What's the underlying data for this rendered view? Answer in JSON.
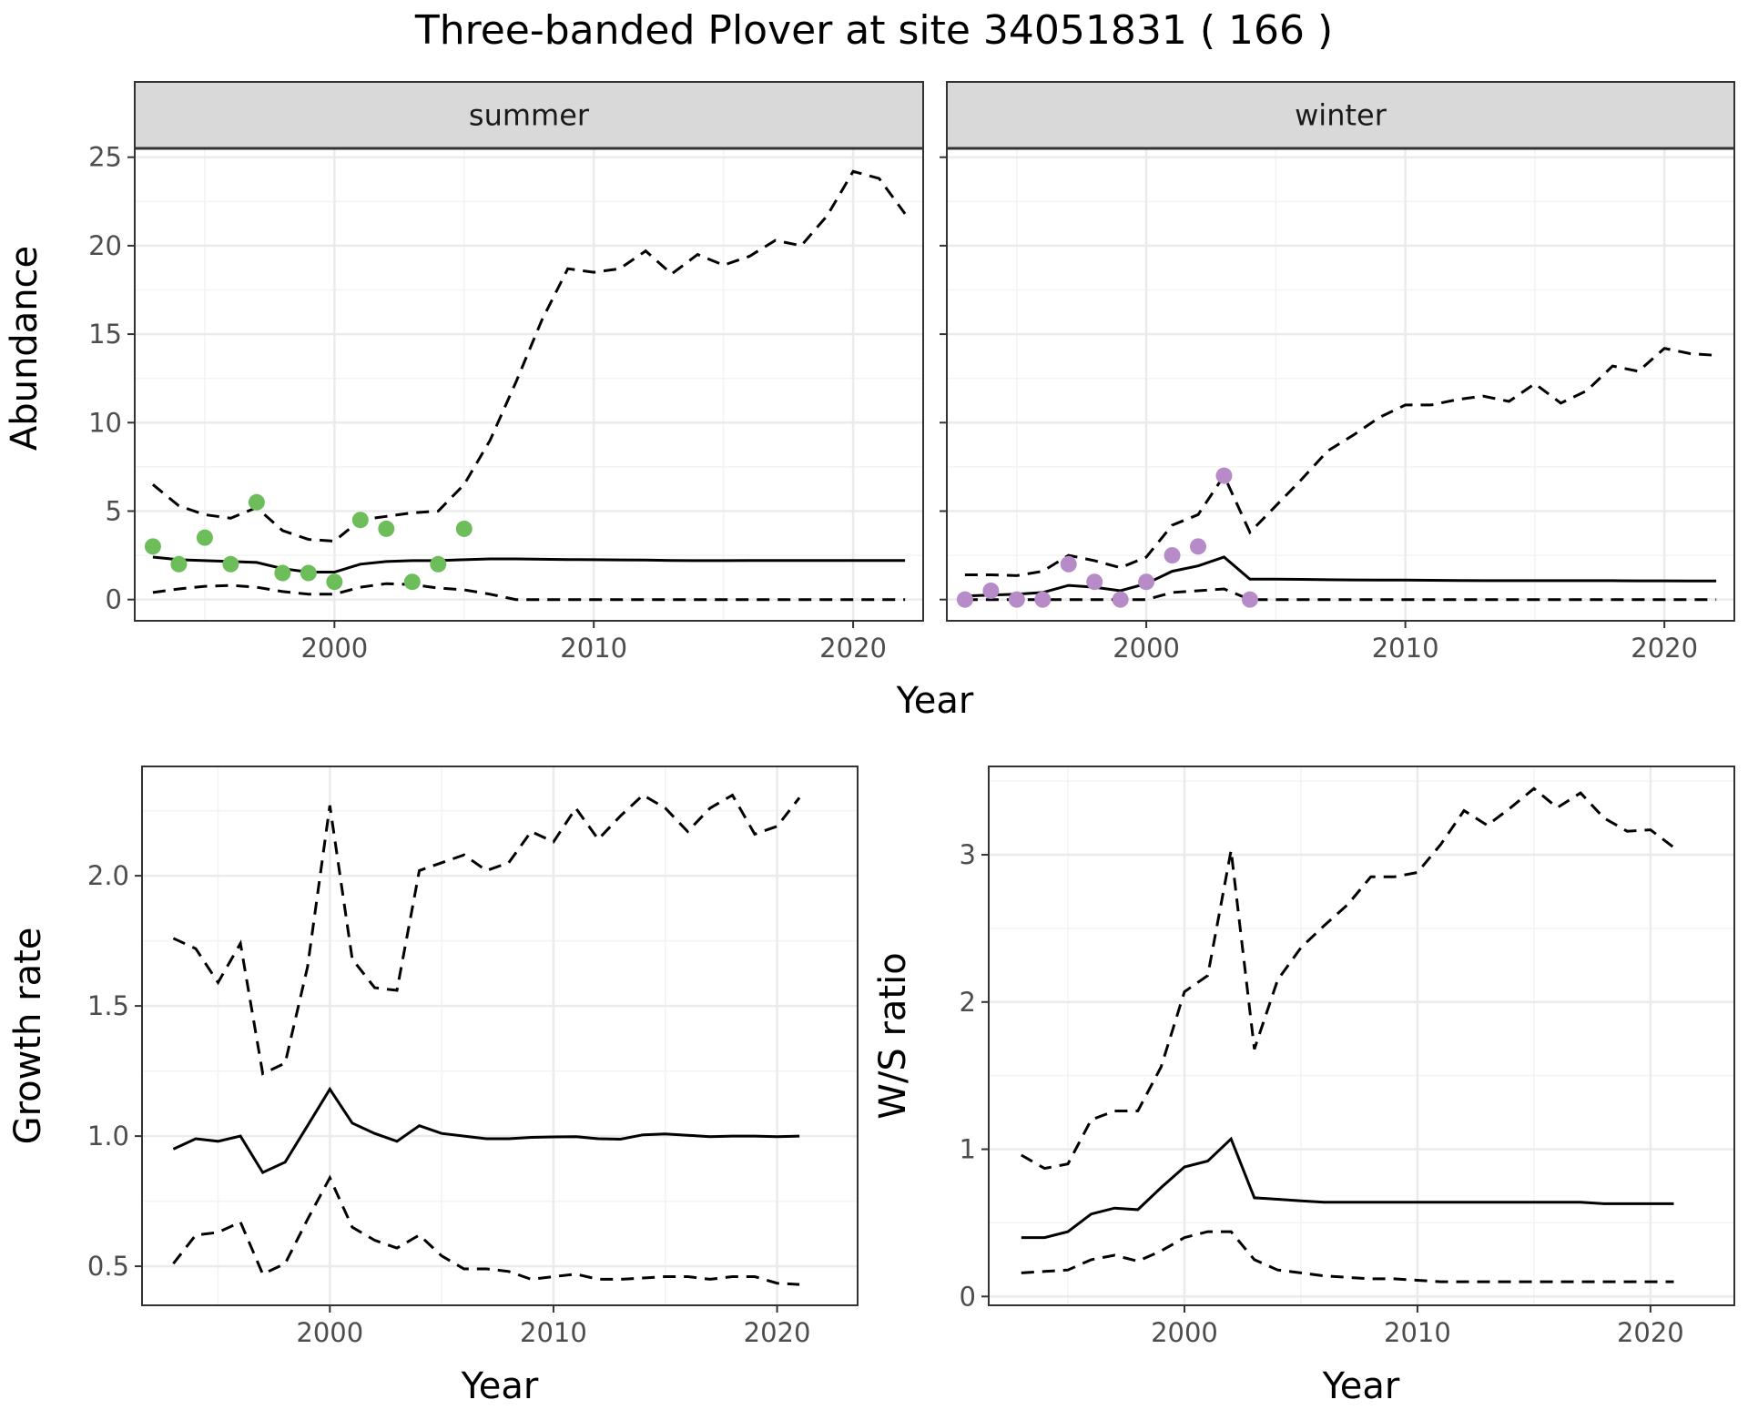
{
  "title": "Three-banded Plover at site 34051831 ( 166 )",
  "colors": {
    "summer_points": "#6dbe5a",
    "winter_points": "#b78bc8",
    "line": "#000000",
    "strip_fill": "#d9d9d9",
    "grid_major": "#ebebeb",
    "grid_minor": "#f3f3f3"
  },
  "chart_data": [
    {
      "type": "line",
      "panel": "summer",
      "strip_label": "summer",
      "ylabel": "Abundance",
      "xlabel": "Year",
      "xlim": [
        1992.3,
        2022.7
      ],
      "ylim": [
        -1.2,
        25.5
      ],
      "x_ticks": [
        2000,
        2010,
        2020
      ],
      "y_ticks": [
        0,
        5,
        10,
        15,
        20,
        25
      ],
      "grid": true,
      "mean": {
        "x": [
          1993,
          1994,
          1995,
          1996,
          1997,
          1998,
          1999,
          2000,
          2001,
          2002,
          2003,
          2004,
          2005,
          2006,
          2007,
          2008,
          2009,
          2010,
          2011,
          2012,
          2013,
          2014,
          2015,
          2016,
          2017,
          2018,
          2019,
          2020,
          2021,
          2022
        ],
        "y": [
          2.4,
          2.25,
          2.2,
          2.15,
          2.1,
          1.75,
          1.55,
          1.55,
          2.0,
          2.15,
          2.2,
          2.2,
          2.25,
          2.3,
          2.3,
          2.28,
          2.26,
          2.25,
          2.24,
          2.23,
          2.21,
          2.2,
          2.2,
          2.21,
          2.21,
          2.21,
          2.21,
          2.21,
          2.21,
          2.21
        ]
      },
      "upper": {
        "x": [
          1993,
          1994,
          1995,
          1996,
          1997,
          1998,
          1999,
          2000,
          2001,
          2002,
          2003,
          2004,
          2005,
          2006,
          2007,
          2008,
          2009,
          2010,
          2011,
          2012,
          2013,
          2014,
          2015,
          2016,
          2017,
          2018,
          2019,
          2020,
          2021,
          2022
        ],
        "y": [
          6.5,
          5.3,
          4.8,
          4.6,
          5.2,
          3.9,
          3.4,
          3.3,
          4.5,
          4.7,
          4.9,
          5.0,
          6.5,
          9.0,
          12.3,
          15.8,
          18.7,
          18.5,
          18.7,
          19.7,
          18.4,
          19.5,
          18.9,
          19.4,
          20.3,
          20.0,
          21.7,
          24.2,
          23.8,
          21.8
        ]
      },
      "lower": {
        "x": [
          1993,
          1994,
          1995,
          1996,
          1997,
          1998,
          1999,
          2000,
          2001,
          2002,
          2003,
          2004,
          2005,
          2006,
          2007,
          2008,
          2009,
          2010,
          2011,
          2012,
          2013,
          2014,
          2015,
          2016,
          2017,
          2018,
          2019,
          2020,
          2021,
          2022
        ],
        "y": [
          0.4,
          0.6,
          0.75,
          0.8,
          0.7,
          0.45,
          0.3,
          0.3,
          0.7,
          0.9,
          0.85,
          0.65,
          0.55,
          0.3,
          0,
          0,
          0,
          0,
          0,
          0,
          0,
          0,
          0,
          0,
          0,
          0,
          0,
          0,
          0,
          0
        ]
      },
      "points": {
        "x": [
          1993,
          1994,
          1995,
          1996,
          1997,
          1998,
          1999,
          2000,
          2001,
          2002,
          2003,
          2004,
          2005
        ],
        "y": [
          3,
          2,
          3.5,
          2,
          5.5,
          1.5,
          1.5,
          1,
          4.5,
          4,
          1,
          2,
          4
        ]
      }
    },
    {
      "type": "line",
      "panel": "winter",
      "strip_label": "winter",
      "xlabel": "Year",
      "xlim": [
        1992.3,
        2022.7
      ],
      "ylim": [
        -1.2,
        25.5
      ],
      "x_ticks": [
        2000,
        2010,
        2020
      ],
      "y_ticks": [
        0,
        5,
        10,
        15,
        20,
        25
      ],
      "grid": true,
      "mean": {
        "x": [
          1993,
          1994,
          1995,
          1996,
          1997,
          1998,
          1999,
          2000,
          2001,
          2002,
          2003,
          2004,
          2005,
          2006,
          2007,
          2008,
          2009,
          2010,
          2011,
          2012,
          2013,
          2014,
          2015,
          2016,
          2017,
          2018,
          2019,
          2020,
          2021,
          2022
        ],
        "y": [
          0.2,
          0.25,
          0.3,
          0.4,
          0.8,
          0.7,
          0.5,
          0.9,
          1.6,
          1.9,
          2.4,
          1.15,
          1.15,
          1.14,
          1.12,
          1.11,
          1.1,
          1.1,
          1.09,
          1.08,
          1.07,
          1.07,
          1.07,
          1.07,
          1.07,
          1.07,
          1.06,
          1.06,
          1.05,
          1.05
        ]
      },
      "upper": {
        "x": [
          1993,
          1994,
          1995,
          1996,
          1997,
          1998,
          1999,
          2000,
          2001,
          2002,
          2003,
          2004,
          2005,
          2006,
          2007,
          2008,
          2009,
          2010,
          2011,
          2012,
          2013,
          2014,
          2015,
          2016,
          2017,
          2018,
          2019,
          2020,
          2021,
          2022
        ],
        "y": [
          1.4,
          1.4,
          1.35,
          1.6,
          2.5,
          2.2,
          1.8,
          2.4,
          4.2,
          4.8,
          7.0,
          3.8,
          5.3,
          6.8,
          8.4,
          9.3,
          10.3,
          11.0,
          11.0,
          11.3,
          11.5,
          11.2,
          12.2,
          11.1,
          11.8,
          13.2,
          12.9,
          14.2,
          13.9,
          13.8
        ]
      },
      "lower": {
        "x": [
          1993,
          1994,
          1995,
          1996,
          1997,
          1998,
          1999,
          2000,
          2001,
          2002,
          2003,
          2004,
          2005,
          2006,
          2007,
          2008,
          2009,
          2010,
          2011,
          2012,
          2013,
          2014,
          2015,
          2016,
          2017,
          2018,
          2019,
          2020,
          2021,
          2022
        ],
        "y": [
          0,
          0,
          0,
          0,
          0,
          0,
          0,
          0,
          0.4,
          0.5,
          0.6,
          0,
          0,
          0,
          0,
          0,
          0,
          0,
          0,
          0,
          0,
          0,
          0,
          0,
          0,
          0,
          0,
          0,
          0,
          0
        ]
      },
      "points": {
        "x": [
          1993,
          1994,
          1995,
          1996,
          1997,
          1998,
          1999,
          2000,
          2001,
          2002,
          2003,
          2004
        ],
        "y": [
          0,
          0.5,
          0,
          0,
          2,
          1,
          0,
          1,
          2.5,
          3,
          7,
          0
        ]
      }
    },
    {
      "type": "line",
      "panel": "growth",
      "ylabel": "Growth rate",
      "xlabel": "Year",
      "xlim": [
        1991.6,
        2023.6
      ],
      "ylim": [
        0.35,
        2.42
      ],
      "x_ticks": [
        2000,
        2010,
        2020
      ],
      "y_ticks": [
        0.5,
        1.0,
        1.5,
        2.0
      ],
      "grid": true,
      "mean": {
        "x": [
          1993,
          1994,
          1995,
          1996,
          1997,
          1998,
          1999,
          2000,
          2001,
          2002,
          2003,
          2004,
          2005,
          2006,
          2007,
          2008,
          2009,
          2010,
          2011,
          2012,
          2013,
          2014,
          2015,
          2016,
          2017,
          2018,
          2019,
          2020,
          2021
        ],
        "y": [
          0.95,
          0.99,
          0.98,
          1.0,
          0.86,
          0.9,
          1.04,
          1.18,
          1.05,
          1.01,
          0.98,
          1.04,
          1.01,
          1.0,
          0.99,
          0.99,
          0.995,
          0.997,
          0.998,
          0.99,
          0.988,
          1.005,
          1.008,
          1.003,
          0.998,
          1.0,
          1.0,
          0.998,
          1.0
        ]
      },
      "upper": {
        "x": [
          1993,
          1994,
          1995,
          1996,
          1997,
          1998,
          1999,
          2000,
          2001,
          2002,
          2003,
          2004,
          2005,
          2006,
          2007,
          2008,
          2009,
          2010,
          2011,
          2012,
          2013,
          2014,
          2015,
          2016,
          2017,
          2018,
          2019,
          2020,
          2021
        ],
        "y": [
          1.76,
          1.72,
          1.59,
          1.74,
          1.24,
          1.28,
          1.65,
          2.27,
          1.68,
          1.57,
          1.56,
          2.02,
          2.05,
          2.08,
          2.02,
          2.05,
          2.17,
          2.13,
          2.26,
          2.14,
          2.23,
          2.31,
          2.26,
          2.17,
          2.26,
          2.31,
          2.16,
          2.19,
          2.3
        ]
      },
      "lower": {
        "x": [
          1993,
          1994,
          1995,
          1996,
          1997,
          1998,
          1999,
          2000,
          2001,
          2002,
          2003,
          2004,
          2005,
          2006,
          2007,
          2008,
          2009,
          2010,
          2011,
          2012,
          2013,
          2014,
          2015,
          2016,
          2017,
          2018,
          2019,
          2020,
          2021
        ],
        "y": [
          0.51,
          0.62,
          0.63,
          0.67,
          0.47,
          0.51,
          0.68,
          0.84,
          0.65,
          0.6,
          0.57,
          0.62,
          0.54,
          0.49,
          0.49,
          0.48,
          0.45,
          0.46,
          0.47,
          0.45,
          0.45,
          0.455,
          0.46,
          0.46,
          0.45,
          0.46,
          0.46,
          0.435,
          0.43
        ]
      }
    },
    {
      "type": "line",
      "panel": "ratio",
      "ylabel": "W/S ratio",
      "xlabel": "Year",
      "xlim": [
        1991.6,
        2023.6
      ],
      "ylim": [
        -0.06,
        3.6
      ],
      "x_ticks": [
        2000,
        2010,
        2020
      ],
      "y_ticks": [
        0,
        1,
        2,
        3
      ],
      "grid": true,
      "mean": {
        "x": [
          1993,
          1994,
          1995,
          1996,
          1997,
          1998,
          1999,
          2000,
          2001,
          2002,
          2003,
          2004,
          2005,
          2006,
          2007,
          2008,
          2009,
          2010,
          2011,
          2012,
          2013,
          2014,
          2015,
          2016,
          2017,
          2018,
          2019,
          2020,
          2021
        ],
        "y": [
          0.4,
          0.4,
          0.44,
          0.56,
          0.6,
          0.59,
          0.74,
          0.88,
          0.92,
          1.07,
          0.67,
          0.66,
          0.65,
          0.64,
          0.64,
          0.64,
          0.64,
          0.64,
          0.64,
          0.64,
          0.64,
          0.64,
          0.64,
          0.64,
          0.64,
          0.63,
          0.63,
          0.63,
          0.63
        ]
      },
      "upper": {
        "x": [
          1993,
          1994,
          1995,
          1996,
          1997,
          1998,
          1999,
          2000,
          2001,
          2002,
          2003,
          2004,
          2005,
          2006,
          2007,
          2008,
          2009,
          2010,
          2011,
          2012,
          2013,
          2014,
          2015,
          2016,
          2017,
          2018,
          2019,
          2020,
          2021
        ],
        "y": [
          0.96,
          0.87,
          0.9,
          1.2,
          1.26,
          1.26,
          1.56,
          2.07,
          2.18,
          3.03,
          1.68,
          2.15,
          2.37,
          2.52,
          2.66,
          2.85,
          2.85,
          2.88,
          3.07,
          3.3,
          3.2,
          3.32,
          3.45,
          3.32,
          3.42,
          3.25,
          3.16,
          3.17,
          3.05
        ]
      },
      "lower": {
        "x": [
          1993,
          1994,
          1995,
          1996,
          1997,
          1998,
          1999,
          2000,
          2001,
          2002,
          2003,
          2004,
          2005,
          2006,
          2007,
          2008,
          2009,
          2010,
          2011,
          2012,
          2013,
          2014,
          2015,
          2016,
          2017,
          2018,
          2019,
          2020,
          2021
        ],
        "y": [
          0.16,
          0.17,
          0.18,
          0.25,
          0.28,
          0.24,
          0.31,
          0.4,
          0.44,
          0.44,
          0.25,
          0.18,
          0.16,
          0.14,
          0.13,
          0.12,
          0.12,
          0.11,
          0.1,
          0.1,
          0.1,
          0.1,
          0.1,
          0.1,
          0.1,
          0.1,
          0.1,
          0.1,
          0.1
        ]
      }
    }
  ]
}
